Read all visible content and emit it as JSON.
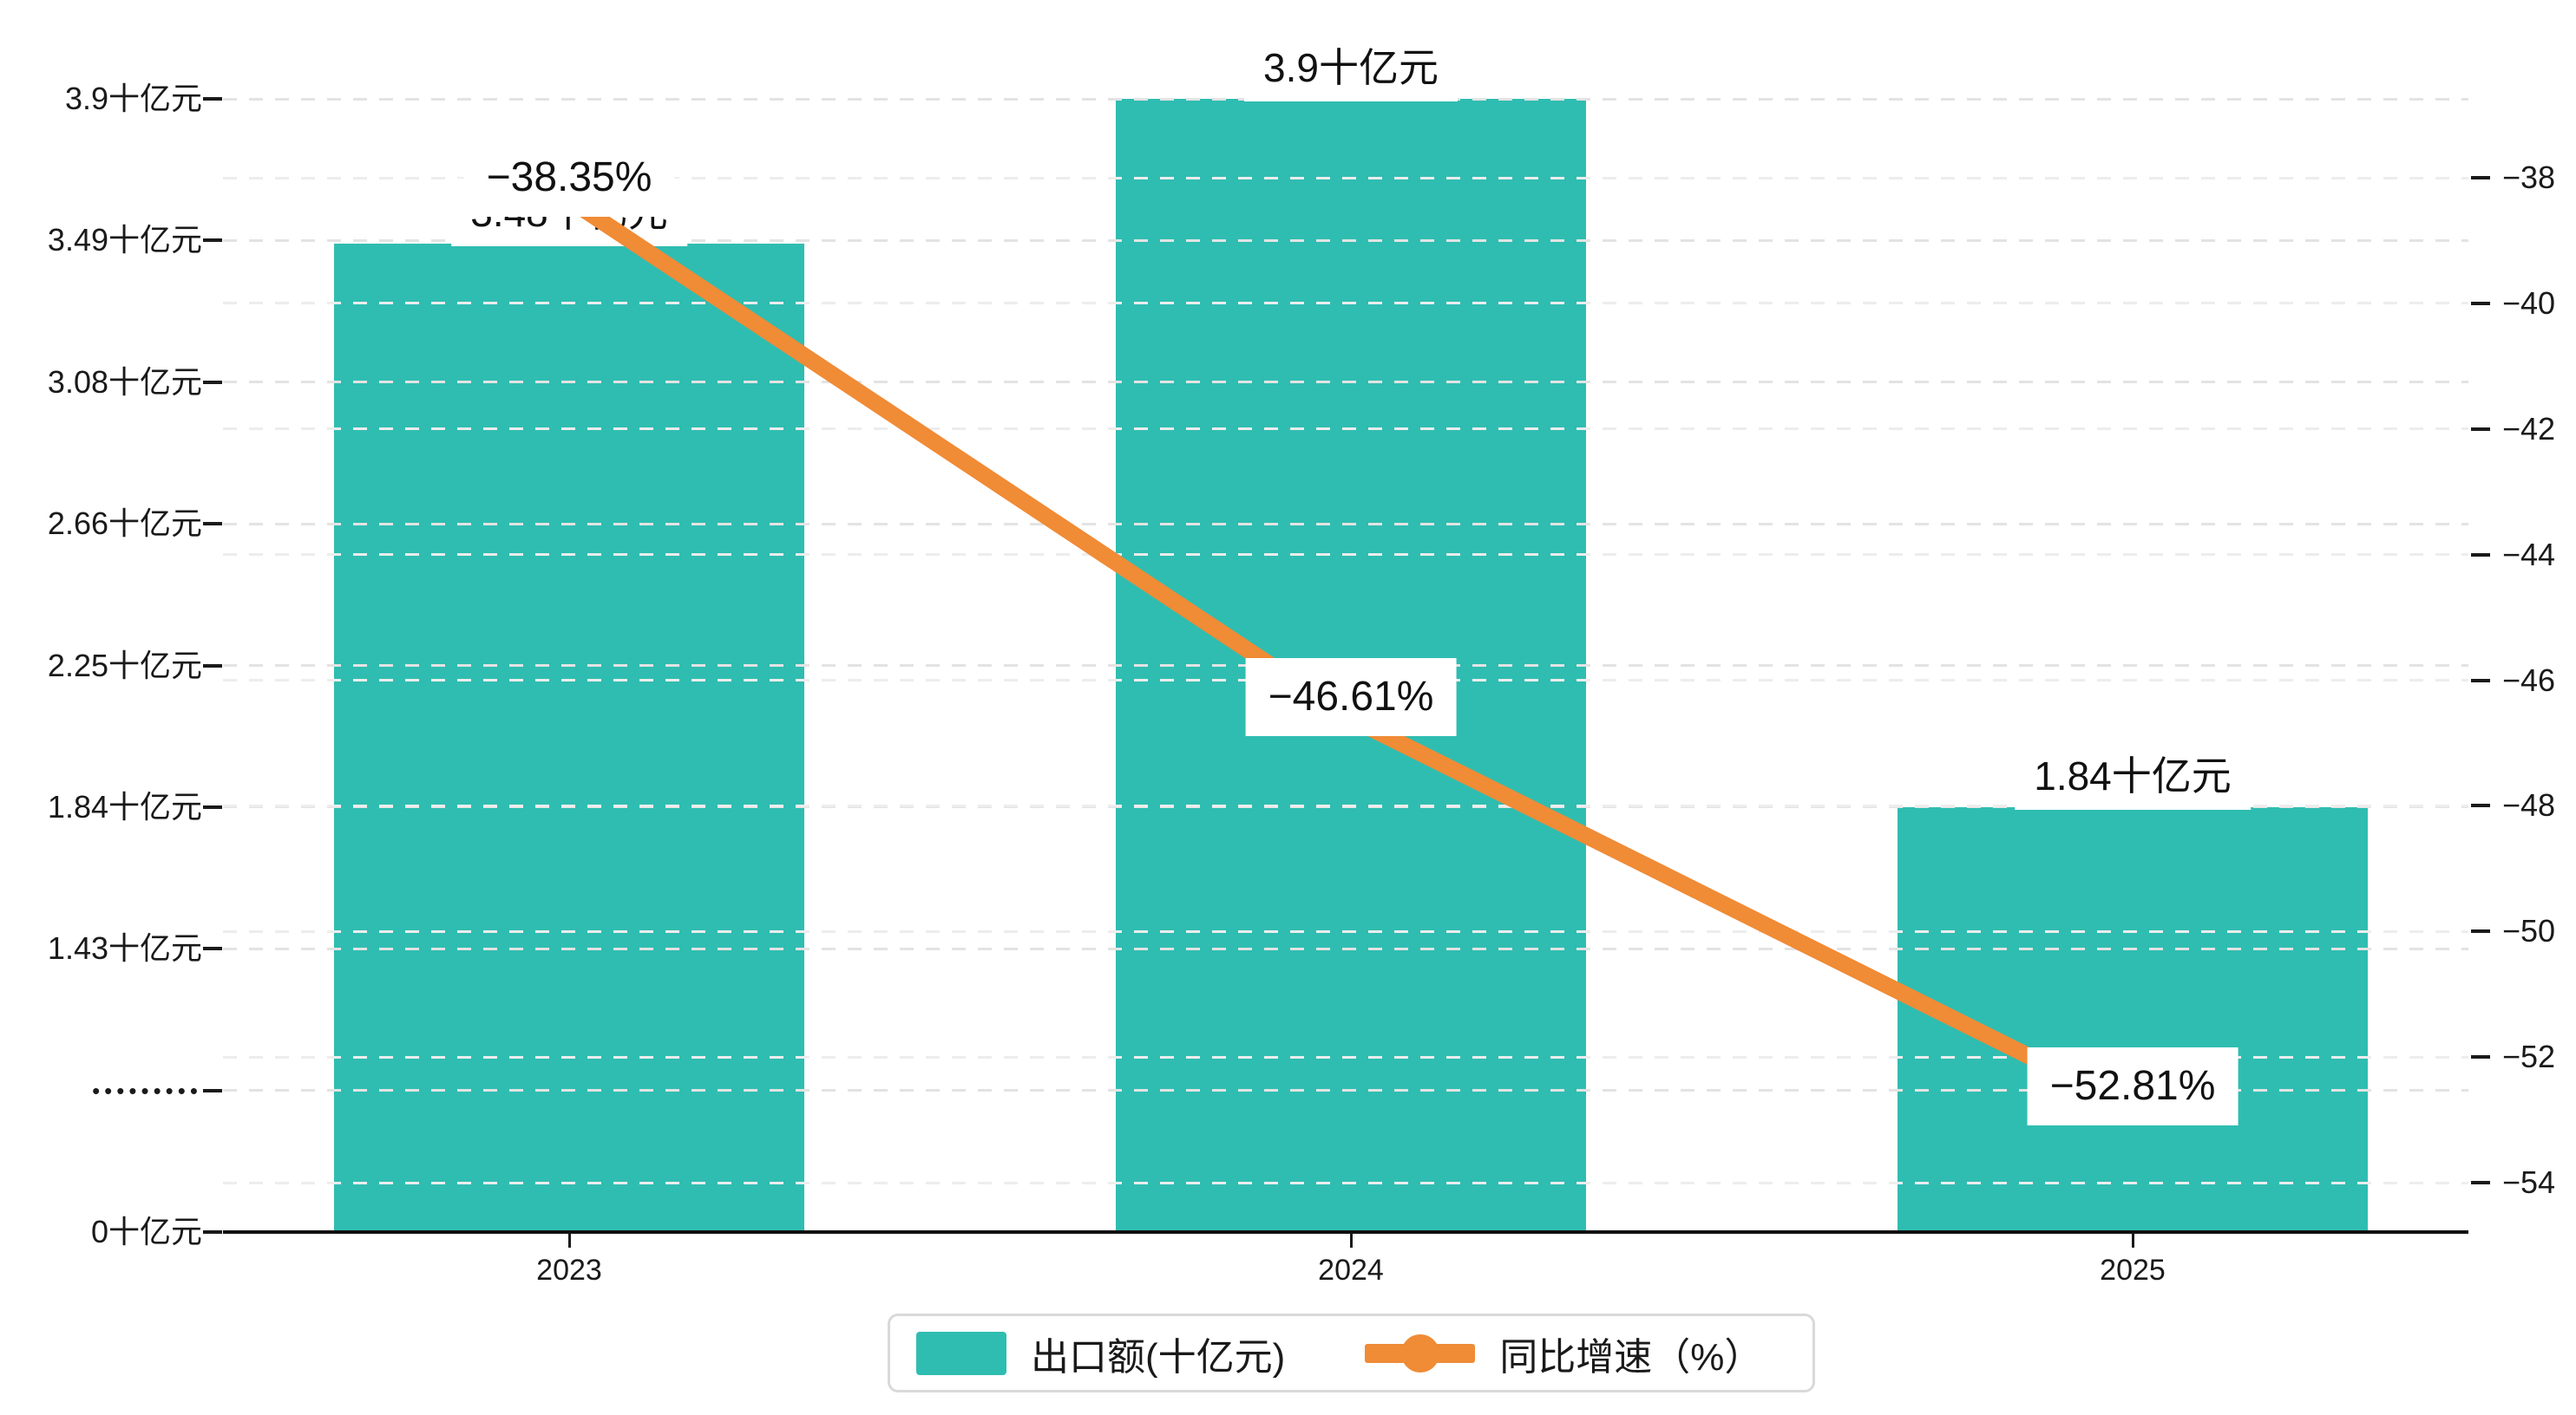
{
  "chart_data": {
    "type": "bar-line-combo",
    "categories": [
      "2023",
      "2024",
      "2025"
    ],
    "series": [
      {
        "name": "出口额(十亿元)",
        "type": "bar",
        "axis": "left",
        "unit": "十亿元",
        "values": [
          3.48,
          3.9,
          1.84
        ],
        "data_labels": [
          "3.48十亿元",
          "3.9十亿元",
          "1.84十亿元"
        ],
        "color": "#2FBDB1"
      },
      {
        "name": "同比增速（%）",
        "type": "line",
        "axis": "right",
        "unit": "%",
        "values": [
          -38.35,
          -46.61,
          -52.81
        ],
        "data_labels": [
          "−38.35%",
          "−46.61%",
          "−52.81%"
        ],
        "color": "#F08B36"
      }
    ],
    "left_axis": {
      "tick_labels_top_to_bottom": [
        "3.9十亿元",
        "3.49十亿元",
        "3.08十亿元",
        "2.66十亿元",
        "2.25十亿元",
        "1.84十亿元",
        "1.43十亿元",
        "•••••••••",
        "0十亿元"
      ],
      "tick_values_for_scale": [
        3.9,
        3.49,
        3.08,
        2.66,
        2.25,
        1.84,
        1.43,
        null,
        0
      ]
    },
    "right_axis": {
      "tick_labels_top_to_bottom": [
        "−38",
        "−40",
        "−42",
        "−44",
        "−46",
        "−48",
        "−50",
        "−52",
        "−54"
      ],
      "range": [
        -38,
        -54
      ]
    },
    "legend": {
      "items": [
        {
          "label": "出口额(十亿元)",
          "color": "#2FBDB1",
          "icon": "bar-swatch"
        },
        {
          "label": "同比增速（%）",
          "color": "#F08B36",
          "icon": "line-with-dot"
        }
      ]
    },
    "grid": "horizontal dashed gridlines for both y axes",
    "background": "#ffffff"
  }
}
